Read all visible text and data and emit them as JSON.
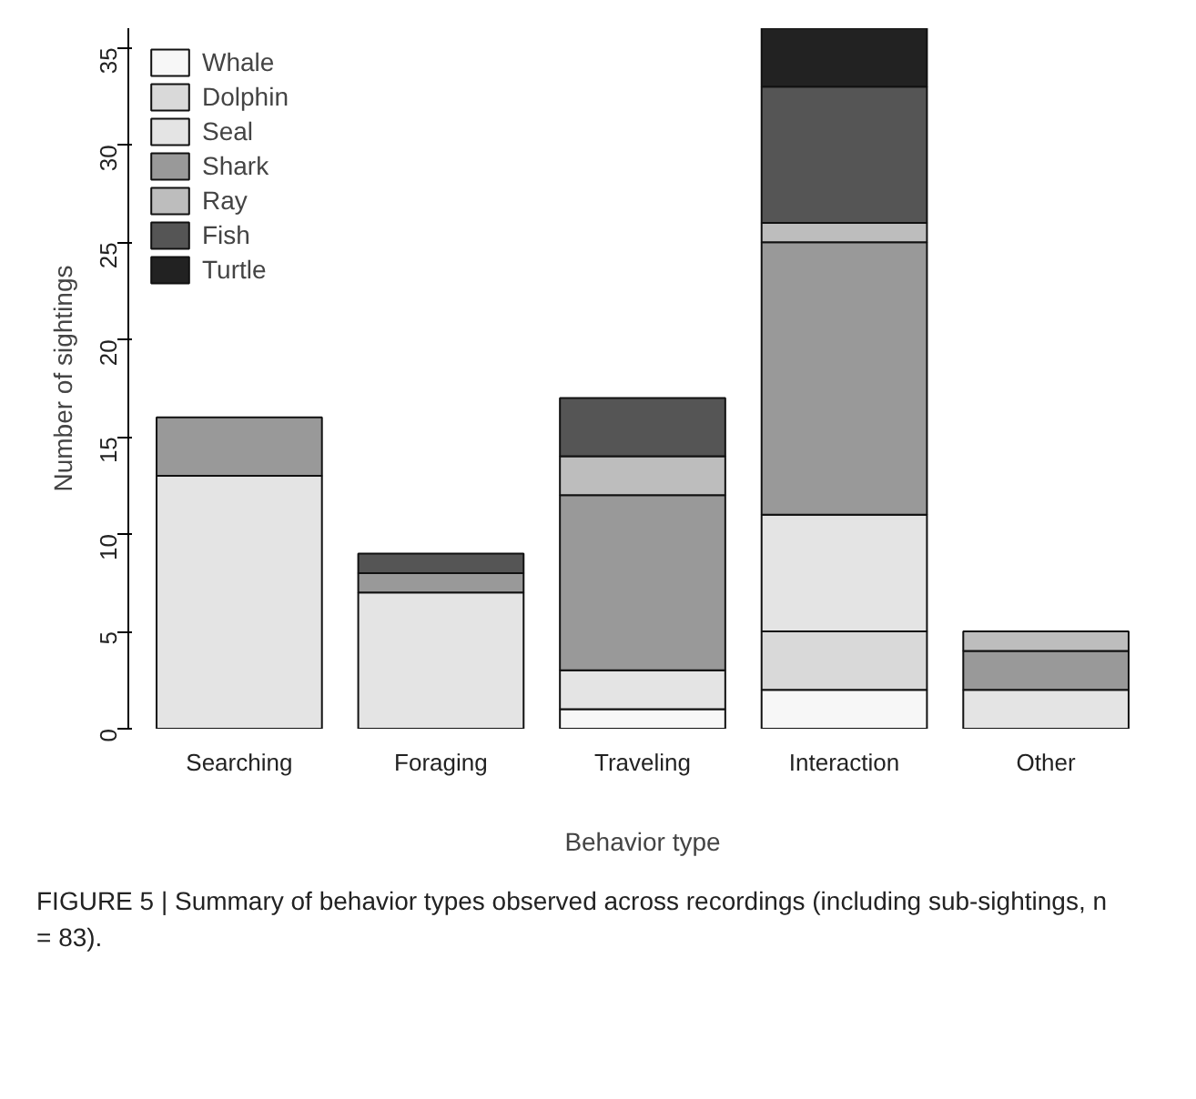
{
  "chart_data": {
    "type": "bar",
    "stacked": true,
    "categories": [
      "Searching",
      "Foraging",
      "Traveling",
      "Interaction",
      "Other"
    ],
    "xlabel": "Behavior type",
    "ylabel": "Number of sightings",
    "ylim": [
      0,
      36
    ],
    "yticks": [
      0,
      5,
      10,
      15,
      20,
      25,
      30,
      35
    ],
    "grid": false,
    "legend": "top left",
    "series": [
      {
        "name": "Whale",
        "color": "#f7f7f7",
        "values": [
          0,
          0,
          1,
          2,
          0
        ]
      },
      {
        "name": "Dolphin",
        "color": "#d9d9d9",
        "values": [
          0,
          0,
          0,
          3,
          0
        ]
      },
      {
        "name": "Seal",
        "color": "#e4e4e4",
        "values": [
          13,
          7,
          2,
          6,
          2
        ]
      },
      {
        "name": "Shark",
        "color": "#999999",
        "values": [
          3,
          1,
          9,
          14,
          2
        ]
      },
      {
        "name": "Ray",
        "color": "#bdbdbd",
        "values": [
          0,
          0,
          2,
          1,
          1
        ]
      },
      {
        "name": "Fish",
        "color": "#555555",
        "values": [
          0,
          1,
          3,
          7,
          0
        ]
      },
      {
        "name": "Turtle",
        "color": "#222222",
        "values": [
          0,
          0,
          0,
          3,
          0
        ]
      }
    ],
    "annotations": [
      "FIGURE 5 | Summary of behavior types observed across recordings (including sub-sightings, n = 83)."
    ]
  }
}
